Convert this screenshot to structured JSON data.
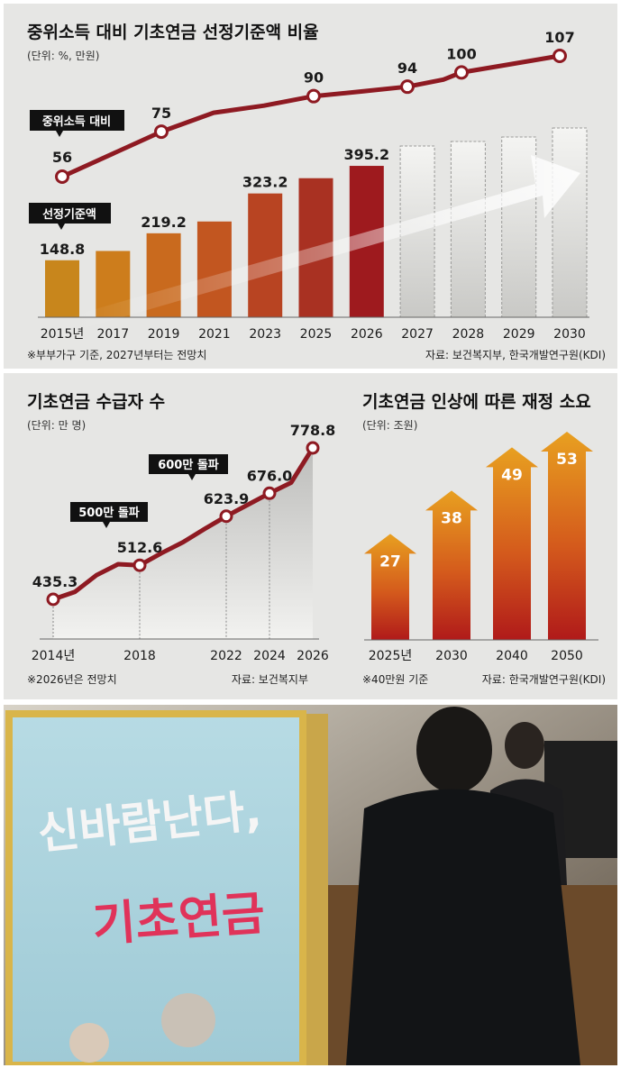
{
  "chart_data": [
    {
      "type": "bar",
      "title": "중위소득 대비 기초연금 선정기준액 비율",
      "subtitle": "(단위: %, 만원)",
      "categories": [
        "2015년",
        "2017",
        "2019",
        "2021",
        "2023",
        "2025",
        "2026",
        "2027",
        "2028",
        "2029",
        "2030"
      ],
      "series": [
        {
          "name": "선정기준액",
          "values": [
            148.8,
            173,
            219.2,
            250,
            323.2,
            363,
            395.2,
            null,
            null,
            null,
            null
          ],
          "labels": [
            "148.8",
            "",
            "219.2",
            "",
            "323.2",
            "",
            "395.2",
            "",
            "",
            "",
            ""
          ]
        },
        {
          "name": "중위소득 대비",
          "values": [
            56,
            75,
            83,
            86,
            90,
            92,
            94,
            97,
            100,
            103,
            107
          ],
          "labels": [
            "56",
            "75",
            "",
            "",
            "90",
            "",
            "94",
            "",
            "100",
            "",
            "107"
          ],
          "x": [
            "2015",
            "2017",
            "2019",
            "2021",
            "2023",
            "2025",
            "2026",
            "2027",
            "2028",
            "2029",
            "2030"
          ]
        }
      ],
      "projected_from": "2027",
      "note": "※부부가구 기준, 2027년부터는 전망치",
      "source": "자료: 보건복지부, 한국개발연구원(KDI)"
    },
    {
      "type": "area",
      "title": "기초연금 수급자 수",
      "subtitle": "(단위: 만 명)",
      "x": [
        "2014년",
        "2015",
        "2016",
        "2017",
        "2018",
        "2019",
        "2020",
        "2021",
        "2022",
        "2023",
        "2024",
        "2025",
        "2026"
      ],
      "tick_labels": [
        "2014년",
        "2018",
        "2022",
        "2024",
        "2026"
      ],
      "values": [
        435.3,
        452,
        490,
        515,
        512.6,
        540,
        565,
        595,
        623.9,
        650,
        676.0,
        700,
        778.8
      ],
      "value_labels": [
        "435.3",
        "",
        "",
        "",
        "512.6",
        "",
        "",
        "",
        "623.9",
        "",
        "676.0",
        "",
        "778.8"
      ],
      "annotations": [
        "500만 돌파",
        "600만 돌파"
      ],
      "note": "※2026년은 전망치",
      "source": "자료: 보건복지부"
    },
    {
      "type": "bar",
      "title": "기초연금 인상에 따른 재정 소요",
      "subtitle": "(단위: 조원)",
      "categories": [
        "2025년",
        "2030",
        "2040",
        "2050"
      ],
      "values": [
        27,
        38,
        49,
        53
      ],
      "note": "※40만원 기준",
      "source": "자료: 한국개발연구원(KDI)"
    }
  ],
  "poster": {
    "line1": "신바람난다,",
    "line2": "기초연금"
  }
}
